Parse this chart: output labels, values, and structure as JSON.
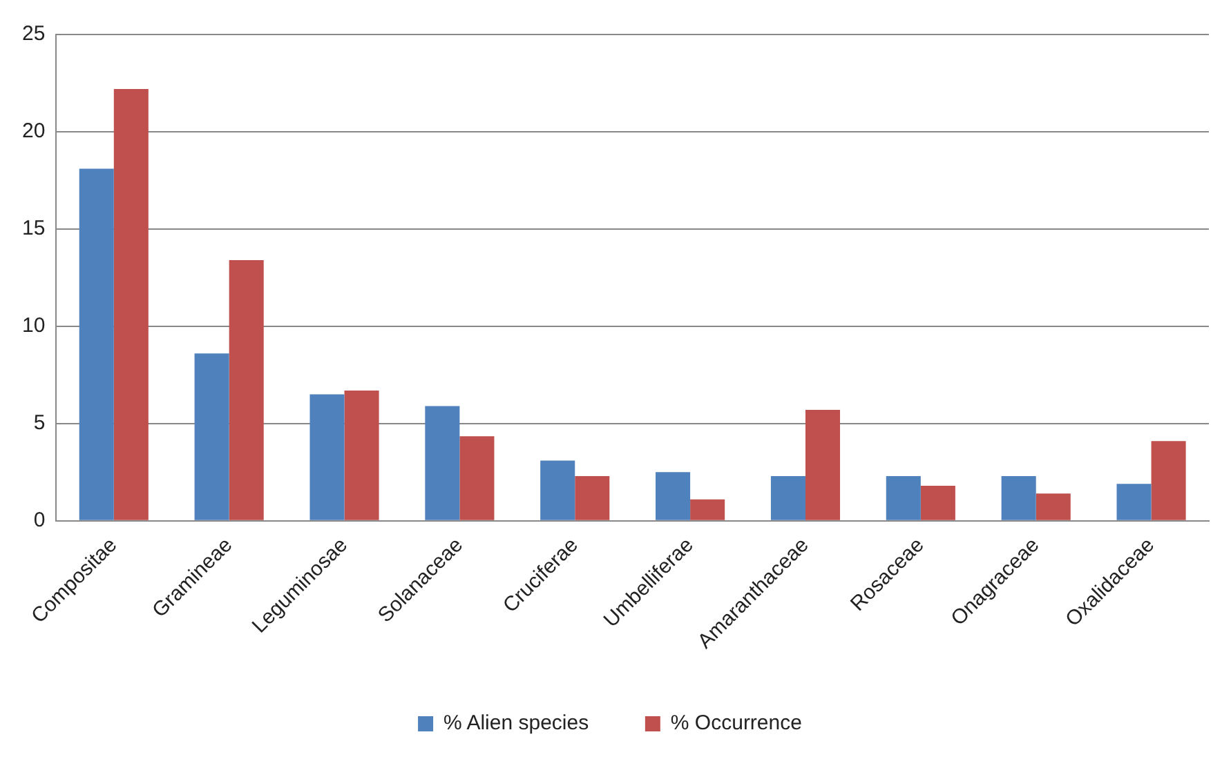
{
  "chart_data": {
    "type": "bar",
    "categories": [
      "Compositae",
      "Gramineae",
      "Leguminosae",
      "Solanaceae",
      "Cruciferae",
      "Umbelliferae",
      "Amaranthaceae",
      "Rosaceae",
      "Onagraceae",
      "Oxalidaceae"
    ],
    "series": [
      {
        "name": "% Alien species",
        "color": "#4f81bd",
        "values": [
          18.1,
          8.6,
          6.5,
          5.9,
          3.1,
          2.5,
          2.3,
          2.3,
          2.3,
          1.9
        ]
      },
      {
        "name": "% Occurrence",
        "color": "#c0504d",
        "values": [
          22.2,
          13.4,
          6.7,
          4.35,
          2.3,
          1.1,
          5.7,
          1.8,
          1.4,
          4.1
        ]
      }
    ],
    "ylim": [
      0,
      25
    ],
    "yticks": [
      0,
      5,
      10,
      15,
      20,
      25
    ],
    "grid": "y",
    "legend": "bottom"
  }
}
